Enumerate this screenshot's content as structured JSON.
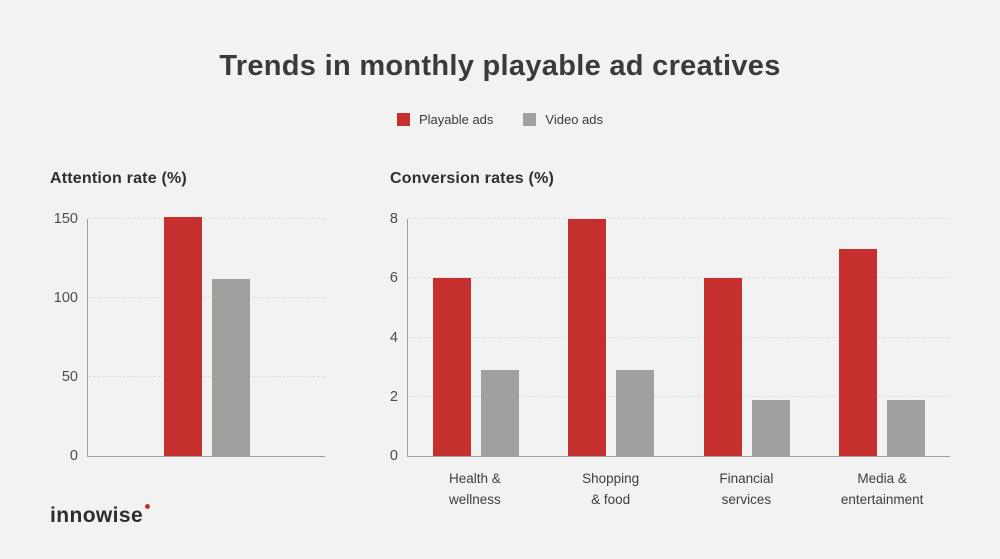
{
  "title": "Trends in monthly playable ad creatives",
  "colors": {
    "background": "#f1f2f1",
    "playable": "#c5302f",
    "video": "#a0a09f",
    "axis": "#9e9e9e",
    "gridline": "#dcdcdc",
    "title_text": "#3a3a3a"
  },
  "legend": {
    "items": [
      {
        "label": "Playable ads",
        "color": "#c5302f"
      },
      {
        "label": "Video ads",
        "color": "#a0a09f"
      }
    ]
  },
  "chart_data": [
    {
      "type": "bar",
      "title": "Attention rate (%)",
      "categories": [
        ""
      ],
      "series": [
        {
          "name": "Playable ads",
          "color": "#c5302f",
          "values": [
            151
          ]
        },
        {
          "name": "Video ads",
          "color": "#a0a09f",
          "values": [
            112
          ]
        }
      ],
      "ylim": [
        0,
        150
      ],
      "yticks": [
        0,
        50,
        100,
        150
      ],
      "grid": true,
      "legend_position": "top",
      "xlabel": "",
      "ylabel": ""
    },
    {
      "type": "bar",
      "title": "Conversion rates (%)",
      "categories": [
        "Health &\nwellness",
        "Shopping\n& food",
        "Financial\nservices",
        "Media &\nentertainment"
      ],
      "series": [
        {
          "name": "Playable ads",
          "color": "#c5302f",
          "values": [
            6,
            8,
            6,
            7
          ]
        },
        {
          "name": "Video ads",
          "color": "#a0a09f",
          "values": [
            2.9,
            2.9,
            1.9,
            1.9
          ]
        }
      ],
      "ylim": [
        0,
        8
      ],
      "yticks": [
        0,
        2,
        4,
        6,
        8
      ],
      "grid": true,
      "legend_position": "top",
      "xlabel": "",
      "ylabel": ""
    }
  ],
  "footer": {
    "logo_text": "innowise",
    "logo_dot_color": "#c5302f"
  }
}
